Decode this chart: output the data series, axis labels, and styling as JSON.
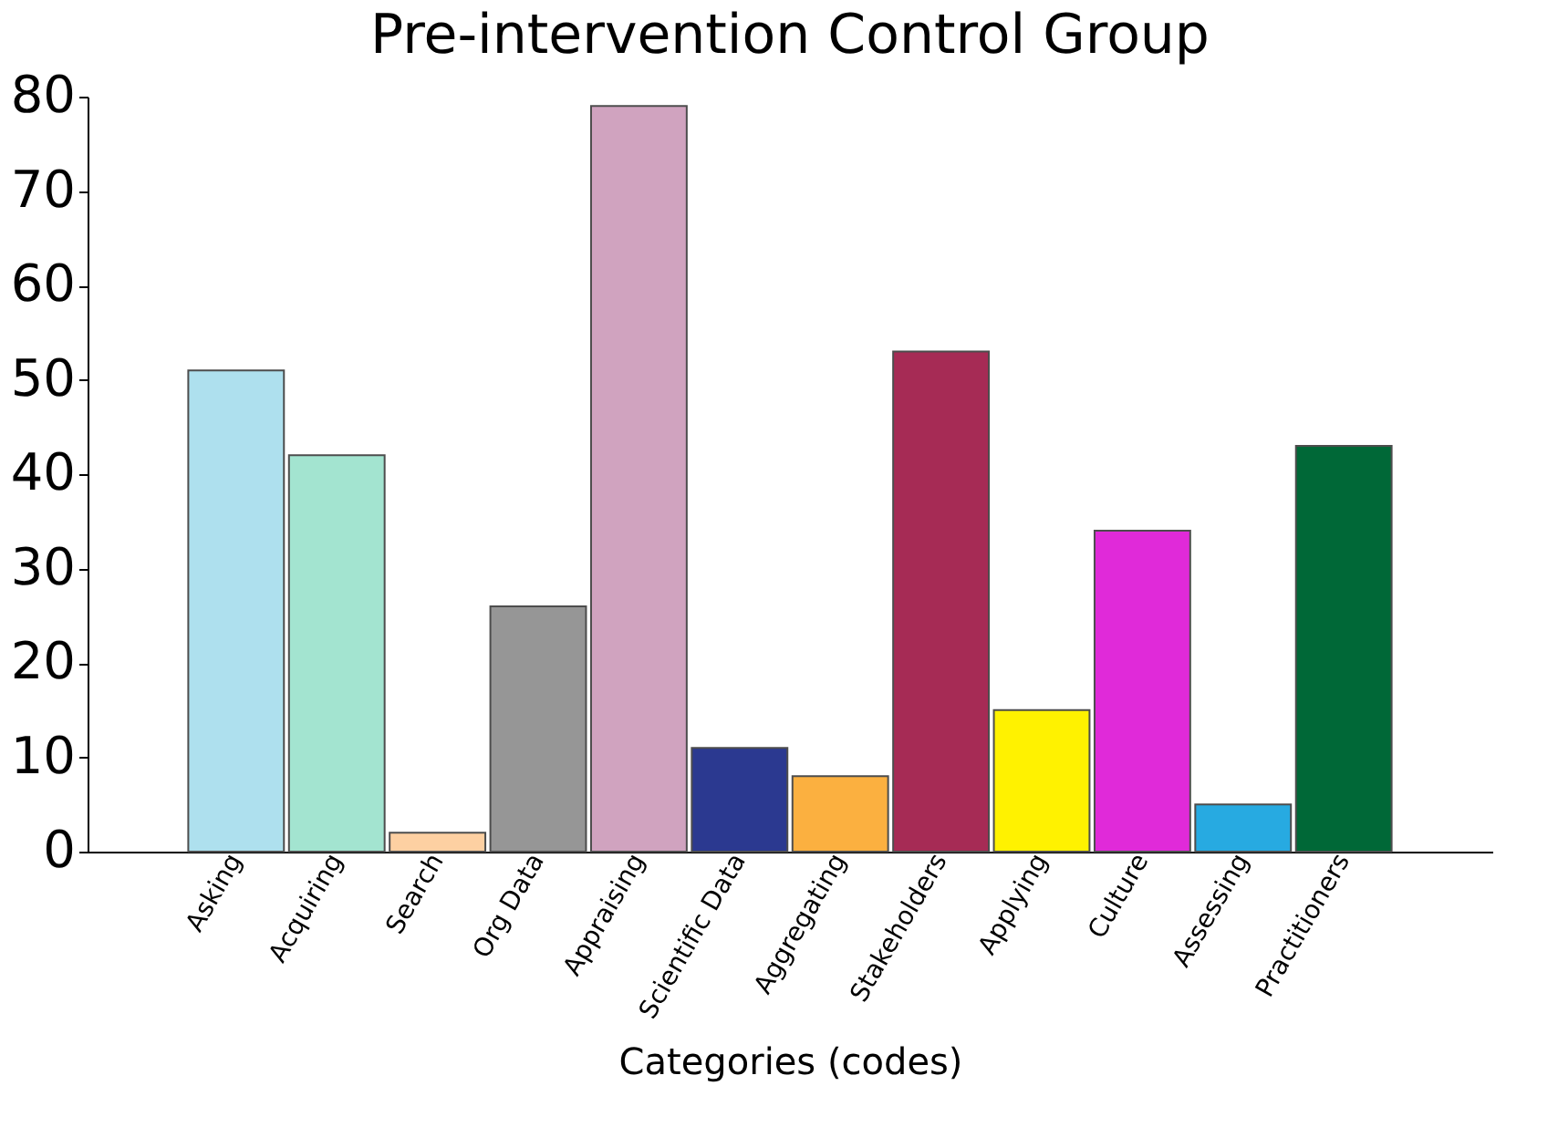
{
  "chart_data": {
    "type": "bar",
    "title": "Pre-intervention Control Group",
    "xlabel": "Categories (codes)",
    "categories": [
      "Asking",
      "Acquiring",
      "Search",
      "Org Data",
      "Appraising",
      "Scientific Data",
      "Aggregating",
      "Stakeholders",
      "Applying",
      "Culture",
      "Assessing",
      "Practitioners"
    ],
    "values": [
      51,
      42,
      2,
      26,
      79,
      11,
      8,
      53,
      15,
      34,
      5,
      43
    ],
    "colors": [
      "#aee0ee",
      "#a3e4d0",
      "#fdd0a2",
      "#969696",
      "#d0a3bf",
      "#2b3990",
      "#fbb040",
      "#a62b55",
      "#fff200",
      "#e02ad9",
      "#27aae1",
      "#006837"
    ],
    "ylim": [
      0,
      80
    ],
    "yticks": [
      0,
      10,
      20,
      30,
      40,
      50,
      60,
      70,
      80
    ],
    "grid": false
  }
}
